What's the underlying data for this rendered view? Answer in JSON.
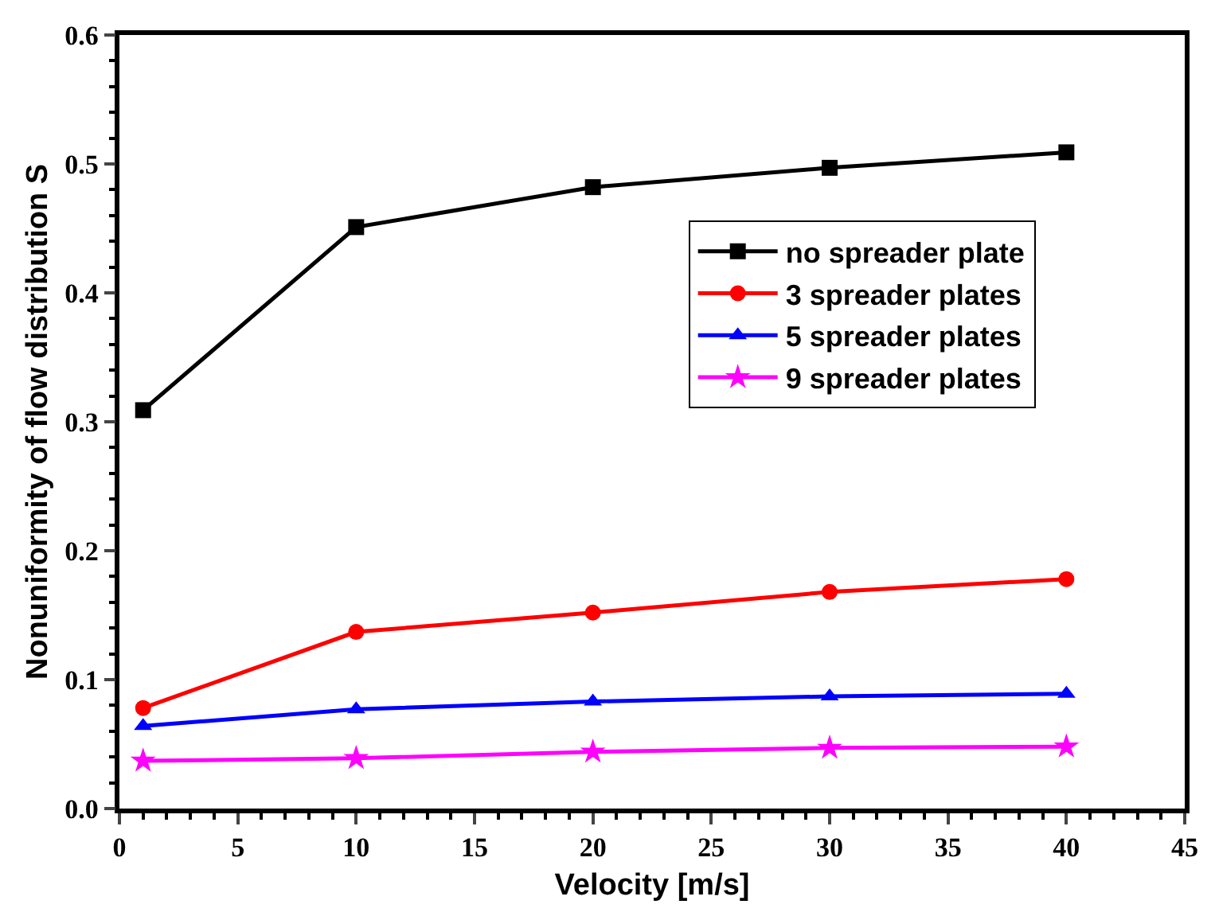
{
  "chart_data": {
    "type": "line",
    "xlabel": "Velocity [m/s]",
    "ylabel": "Nonuniformity of flow distribution S",
    "x": [
      1,
      10,
      20,
      30,
      40
    ],
    "series": [
      {
        "name": "no spreader plate",
        "color": "#000000",
        "marker": "square",
        "values": [
          0.309,
          0.451,
          0.482,
          0.497,
          0.509
        ]
      },
      {
        "name": "3 spreader plates",
        "color": "#ff0000",
        "marker": "circle",
        "values": [
          0.078,
          0.137,
          0.152,
          0.168,
          0.178
        ]
      },
      {
        "name": "5 spreader plates",
        "color": "#0000ff",
        "marker": "triangle",
        "values": [
          0.064,
          0.077,
          0.083,
          0.087,
          0.089
        ]
      },
      {
        "name": "9 spreader plates",
        "color": "#ff00ff",
        "marker": "star",
        "values": [
          0.037,
          0.039,
          0.044,
          0.047,
          0.048
        ]
      }
    ],
    "xlim": [
      0,
      45
    ],
    "xticks": [
      0,
      5,
      10,
      15,
      20,
      25,
      30,
      35,
      40,
      45
    ],
    "ylim": [
      0,
      0.6
    ],
    "yticks": [
      {
        "value": 0,
        "label": "0.0"
      },
      {
        "value": 0.1,
        "label": "0.1"
      },
      {
        "value": 0.2,
        "label": "0.2"
      },
      {
        "value": 0.3,
        "label": "0.3"
      },
      {
        "value": 0.4,
        "label": "0.4"
      },
      {
        "value": 0.5,
        "label": "0.5"
      },
      {
        "value": 0.6,
        "label": "0.6"
      }
    ],
    "legend": "top right",
    "line_style": "solid"
  }
}
